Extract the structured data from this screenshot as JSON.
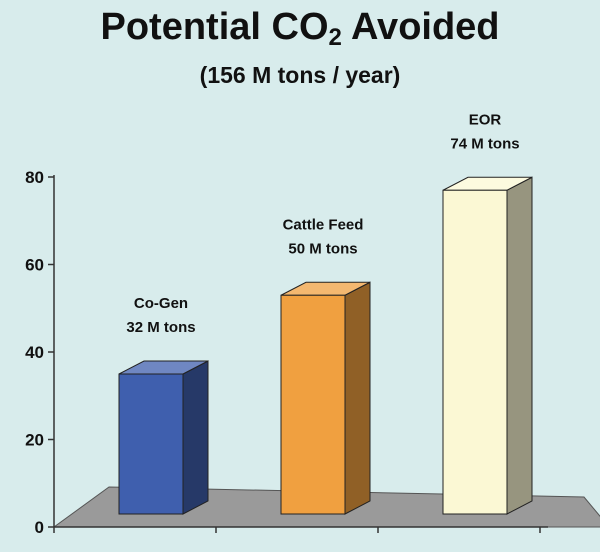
{
  "title_main": "Potential CO",
  "title_sub": "2",
  "title_tail": " Avoided",
  "subtitle": "(156 M tons / year)",
  "colors": {
    "background": "#d8ecec",
    "floor": "#9a9a9a",
    "bar_cogen": "#3f5fae",
    "bar_cattle": "#f0a040",
    "bar_eor": "#fbf8d4"
  },
  "chart_data": {
    "type": "bar",
    "title": "Potential CO2 Avoided",
    "subtitle": "(156 M tons / year)",
    "categories": [
      "Co-Gen",
      "Cattle Feed",
      "EOR"
    ],
    "values": [
      32,
      50,
      74
    ],
    "bar_labels": [
      [
        "Co-Gen",
        "32 M tons"
      ],
      [
        "Cattle Feed",
        "50 M tons"
      ],
      [
        "EOR",
        "74 M tons"
      ]
    ],
    "ylim": [
      0,
      80
    ],
    "yticks": [
      "0",
      "20",
      "40",
      "60",
      "80"
    ],
    "xlabel": "",
    "ylabel": "",
    "grid": false,
    "style": "3d-column"
  }
}
